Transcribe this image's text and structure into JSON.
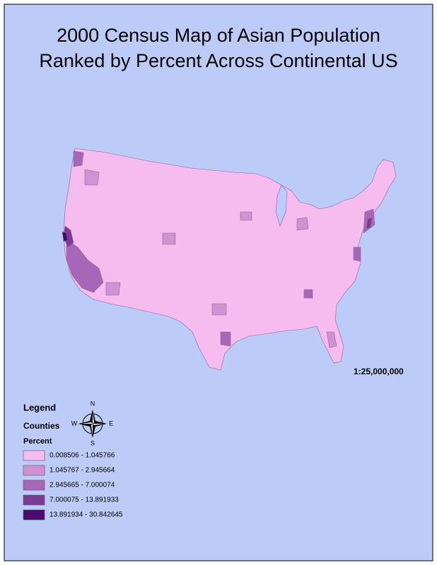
{
  "title": [
    "2000 Census Map of Asian Population",
    "Ranked by Percent Across Continental US"
  ],
  "scale": "1:25,000,000",
  "legend": {
    "title": "Legend",
    "layer": "Counties",
    "field": "Percent",
    "classes": [
      {
        "label": "0.008506 - 1.045766",
        "color": "#f6bcf0"
      },
      {
        "label": "1.045767 - 2.945664",
        "color": "#d092d2"
      },
      {
        "label": "2.945665 - 7.000074",
        "color": "#a866b8"
      },
      {
        "label": "7.000075 - 13.891933",
        "color": "#7a3a96"
      },
      {
        "label": "13.891934 - 30.842645",
        "color": "#4a0a6e"
      }
    ]
  },
  "compass": {
    "n": "N",
    "e": "E",
    "s": "S",
    "w": "W"
  }
}
